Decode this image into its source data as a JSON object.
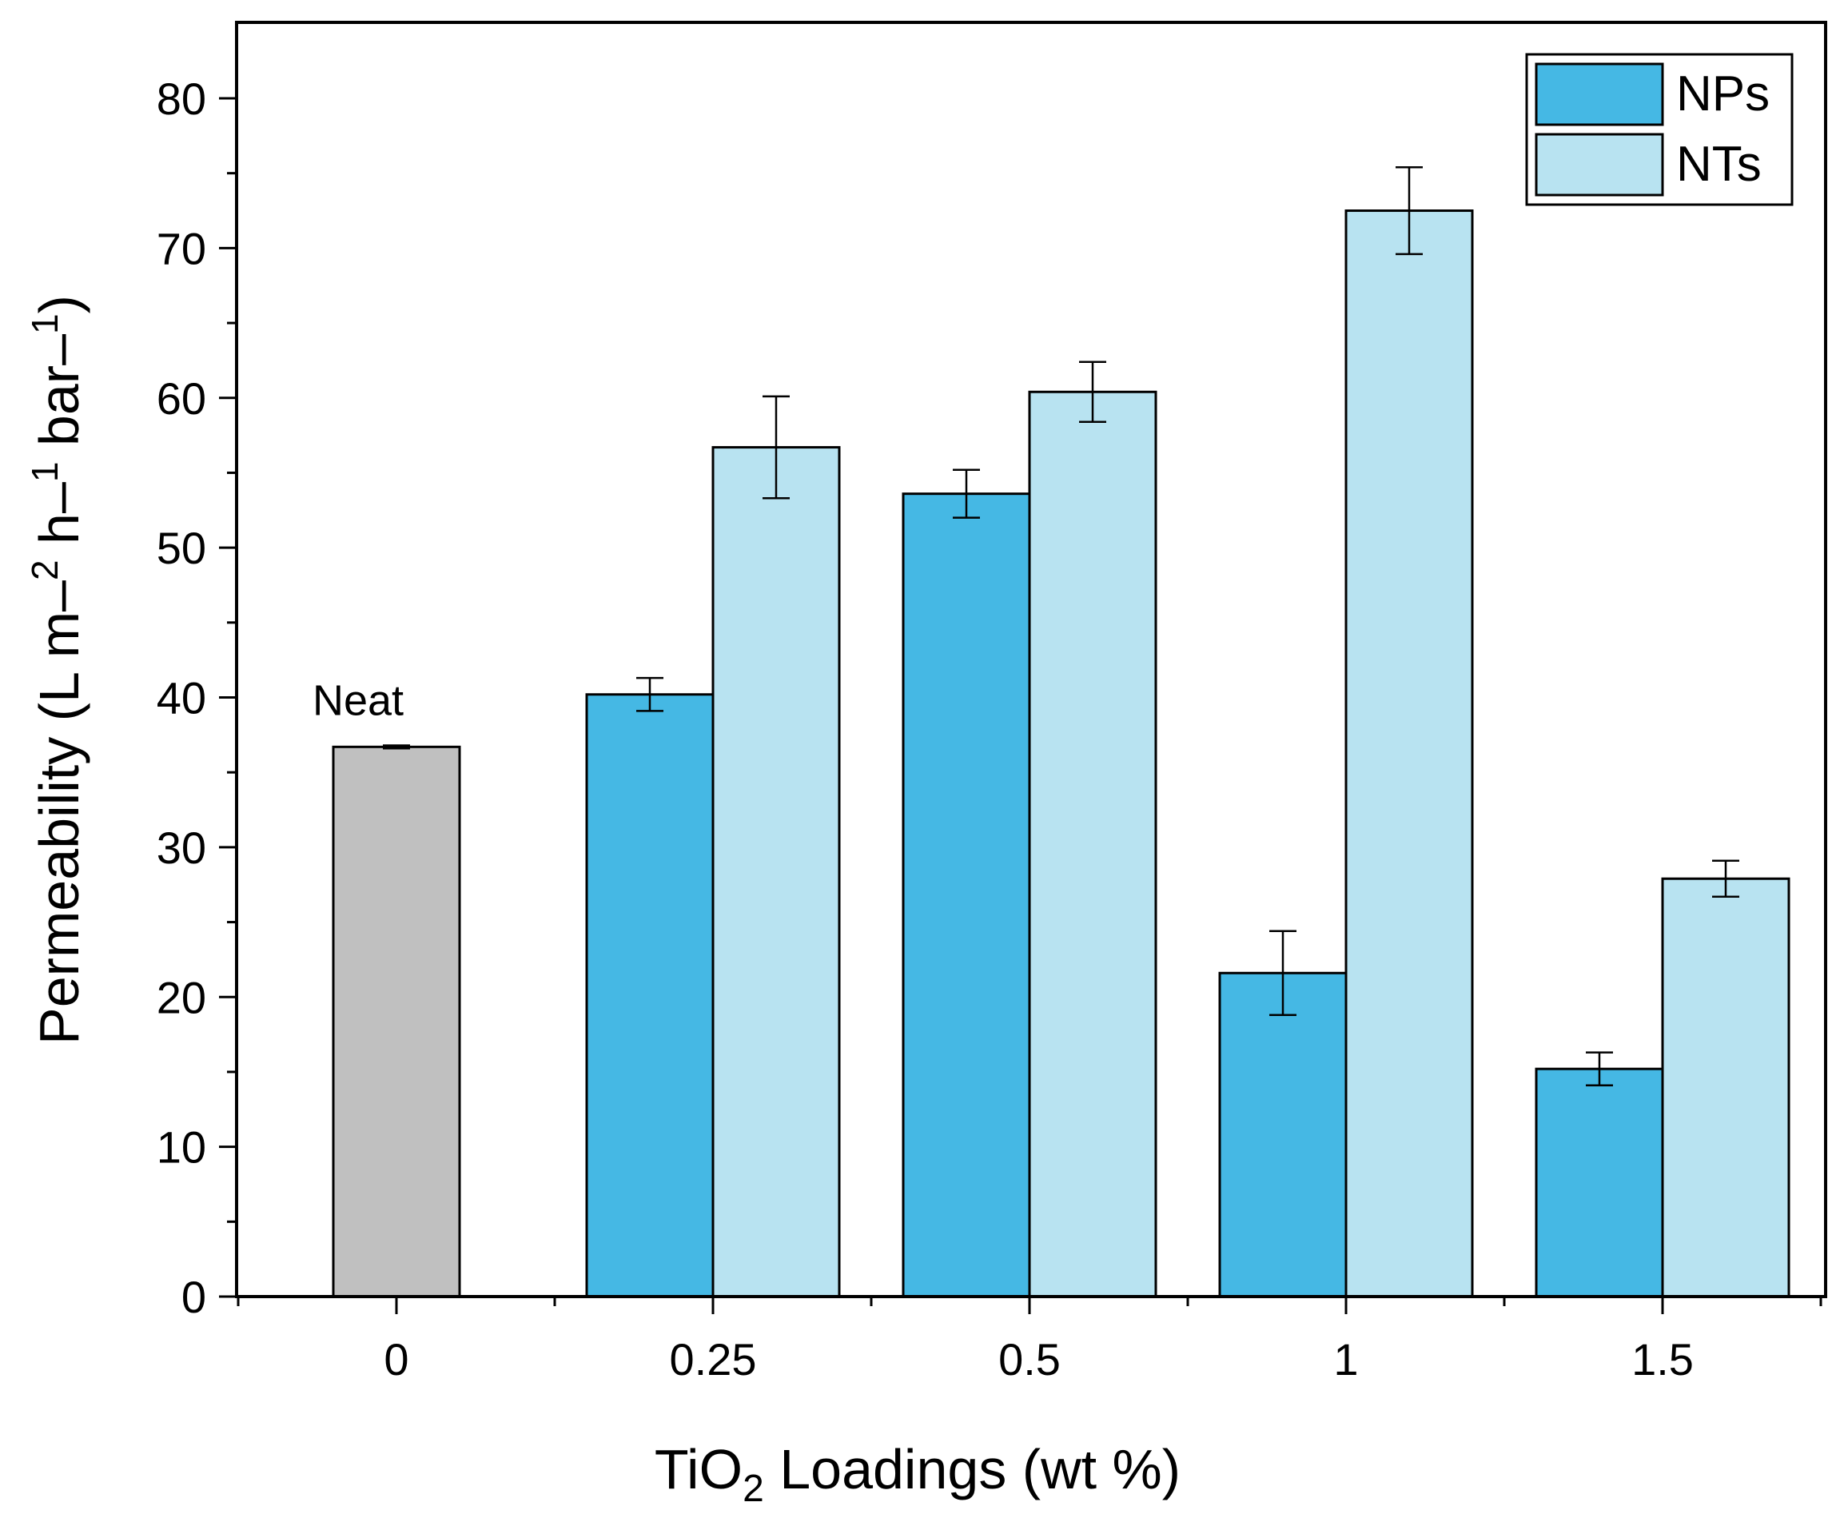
{
  "chart_data": {
    "type": "bar",
    "categories": [
      "0",
      "0.25",
      "0.5",
      "1",
      "1.5"
    ],
    "neat": {
      "category": "0",
      "value": 36.7,
      "error": 0.1,
      "label": "Neat",
      "color": "#c0c0c0"
    },
    "series": [
      {
        "name": "NPs",
        "color": "#45b8e4",
        "values": [
          null,
          40.2,
          53.6,
          21.6,
          15.2
        ],
        "errors": [
          null,
          1.1,
          1.6,
          2.8,
          1.1
        ]
      },
      {
        "name": "NTs",
        "color": "#b8e3f1",
        "values": [
          null,
          56.7,
          60.4,
          72.5,
          27.9
        ],
        "errors": [
          null,
          3.4,
          2.0,
          2.9,
          1.2
        ]
      }
    ],
    "ylim": [
      0,
      85
    ],
    "yticks": [
      0,
      10,
      20,
      30,
      40,
      50,
      60,
      70,
      80
    ],
    "xlabel": {
      "prefix": "TiO",
      "sub": "2",
      "suffix": " Loadings (wt %)"
    },
    "ylabel": {
      "part1": "Permeability (L m–",
      "sup1": "2",
      "part2": " h–",
      "sup2": "1",
      "part3": " bar–",
      "sup3": "1",
      "part4": ")"
    },
    "legend": "top-right"
  }
}
